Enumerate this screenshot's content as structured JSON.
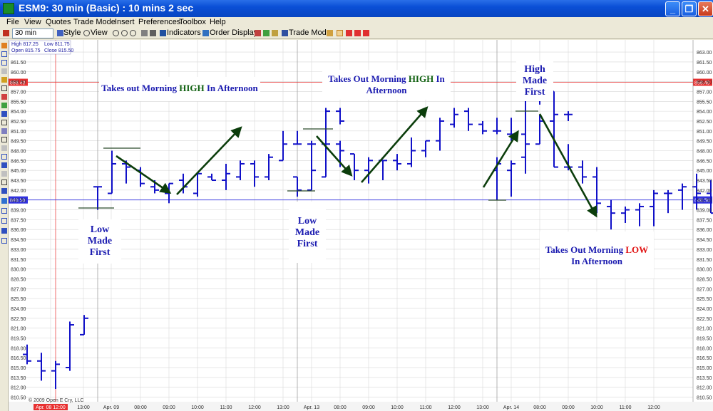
{
  "window": {
    "title": "ESM9: 30 min (Basic) : 10 mins 2 sec",
    "minimize": "_",
    "maximize": "❐",
    "close": "✕"
  },
  "menu": [
    "File",
    "View",
    "Quotes",
    "Trade Mode",
    "Insert",
    "Preferences",
    "Toolbox",
    "Help"
  ],
  "toolbar": {
    "interval": "30 min",
    "style_label": "Style",
    "view_label": "View",
    "indicators_label": "Indicators",
    "order_display_label": "Order Display",
    "trade_mode_label": "Trade Mode"
  },
  "quote_box": {
    "high": "High 817.25",
    "low": "Low 811.75",
    "open": "Open 815.75",
    "close": "Close 815.50"
  },
  "copyright": "© 2009 Open E Cry, LLC",
  "price_markers": {
    "red_level": "858.40",
    "blue_level": "840.50"
  },
  "notes": {
    "n1": {
      "a": "Takes out Morning ",
      "b": "HIGH",
      "c": " In Afternoon"
    },
    "n2": {
      "l1": "Low",
      "l2": "Made",
      "l3": "First"
    },
    "n3": {
      "l1a": "Takes Out Morning ",
      "l1b": "HIGH",
      "l1c": " In",
      "l2": "Afternoon"
    },
    "n4": {
      "l1": "Low",
      "l2": "Made",
      "l3": "First"
    },
    "n5": {
      "l1": "High",
      "l2": "Made",
      "l3": "First"
    },
    "n6": {
      "l1a": "Takes Out Morning ",
      "l1b": "LOW",
      "l2": "In Afternoon"
    }
  },
  "colors": {
    "bars": "#1010c8",
    "arrows": "#0b3d0b",
    "red_line": "#e83030",
    "blue_line": "#3030e0",
    "grid": "#d8d8d8"
  },
  "chart_data": {
    "type": "bar",
    "style": "ohlc",
    "y_ticks": [
      "810.50",
      "812.00",
      "813.50",
      "815.00",
      "816.50",
      "818.00",
      "819.50",
      "821.00",
      "822.50",
      "824.00",
      "825.50",
      "827.00",
      "828.50",
      "830.00",
      "831.50",
      "833.00",
      "834.50",
      "836.00",
      "837.50",
      "839.00",
      "840.50",
      "842.00",
      "843.50",
      "845.00",
      "846.50",
      "848.00",
      "849.50",
      "851.00",
      "852.50",
      "854.00",
      "855.50",
      "857.00",
      "858.50",
      "860.00",
      "861.50",
      "863.00"
    ],
    "right_ticks": [
      "810.50",
      "812.00",
      "813.50",
      "815.00",
      "816.50",
      "818.00",
      "819.50",
      "821.00",
      "822.50",
      "824.00",
      "825.50",
      "827.00",
      "828.50",
      "830.00",
      "831.50",
      "833.00",
      "834.50",
      "836.00",
      "837.50",
      "839.00",
      "840.50",
      "842.00",
      "843.50",
      "845.00",
      "846.50",
      "848.00",
      "849.50",
      "851.00",
      "852.50",
      "854.00",
      "855.50",
      "857.00",
      "858.50",
      "860.00",
      "861.50",
      "863.00"
    ],
    "ylim": [
      809.8,
      864.2
    ],
    "x_labels": [
      "Apr. 08 12:00",
      "13:00",
      "Apr. 09",
      "08:00",
      "09:00",
      "10:00",
      "11:00",
      "12:00",
      "13:00",
      "Apr. 13",
      "08:00",
      "09:00",
      "10:00",
      "11:00",
      "12:00",
      "13:00",
      "Apr. 14",
      "08:00",
      "09:00",
      "10:00",
      "11:00",
      "12:00"
    ],
    "bars": [
      {
        "o": 817.0,
        "h": 818.5,
        "l": 815.5,
        "c": 816.0
      },
      {
        "o": 816.0,
        "h": 817.25,
        "l": 813.0,
        "c": 814.5
      },
      {
        "o": 814.5,
        "h": 816.0,
        "l": 811.75,
        "c": 815.5
      },
      {
        "o": 815.0,
        "h": 822.0,
        "l": 814.5,
        "c": 821.5
      },
      {
        "o": 820.0,
        "h": 823.0,
        "l": 820.0,
        "c": 822.5
      },
      {
        "o": 842.5,
        "h": 842.5,
        "l": 839.0,
        "c": 842.5
      },
      {
        "o": 841.5,
        "h": 848.0,
        "l": 841.5,
        "c": 846.0
      },
      {
        "o": 846.0,
        "h": 846.5,
        "l": 843.0,
        "c": 845.5
      },
      {
        "o": 845.0,
        "h": 845.5,
        "l": 842.5,
        "c": 843.0
      },
      {
        "o": 842.5,
        "h": 843.5,
        "l": 841.5,
        "c": 842.0
      },
      {
        "o": 841.5,
        "h": 843.0,
        "l": 840.0,
        "c": 843.0
      },
      {
        "o": 843.5,
        "h": 844.5,
        "l": 841.5,
        "c": 842.5
      },
      {
        "o": 841.5,
        "h": 844.5,
        "l": 841.0,
        "c": 844.5
      },
      {
        "o": 844.0,
        "h": 844.5,
        "l": 843.5,
        "c": 843.5
      },
      {
        "o": 843.5,
        "h": 846.0,
        "l": 842.0,
        "c": 844.5
      },
      {
        "o": 844.0,
        "h": 846.5,
        "l": 843.5,
        "c": 846.0
      },
      {
        "o": 846.0,
        "h": 846.5,
        "l": 842.5,
        "c": 844.0
      },
      {
        "o": 844.0,
        "h": 847.5,
        "l": 843.5,
        "c": 847.0
      },
      {
        "o": 846.5,
        "h": 851.0,
        "l": 846.5,
        "c": 849.0
      },
      {
        "o": 849.0,
        "h": 851.0,
        "l": 849.0,
        "c": 849.0
      },
      {
        "o": 849.0,
        "h": 849.5,
        "l": 846.5,
        "c": 849.0
      },
      {
        "o": 849.0,
        "h": 854.5,
        "l": 846.5,
        "c": 854.0
      },
      {
        "o": 854.0,
        "h": 854.5,
        "l": 852.0,
        "c": 852.5
      },
      {
        "o": 844.0,
        "h": 844.0,
        "l": 841.0,
        "c": 842.0
      },
      {
        "o": 842.0,
        "h": 848.0,
        "l": 842.0,
        "c": 845.0
      },
      {
        "o": 844.0,
        "h": 851.0,
        "l": 844.0,
        "c": 849.0
      },
      {
        "o": 849.0,
        "h": 849.5,
        "l": 845.5,
        "c": 848.0
      },
      {
        "o": 847.5,
        "h": 847.5,
        "l": 843.5,
        "c": 845.0
      },
      {
        "o": 845.0,
        "h": 847.0,
        "l": 843.0,
        "c": 846.5
      },
      {
        "o": 846.5,
        "h": 846.5,
        "l": 843.5,
        "c": 846.5
      },
      {
        "o": 846.5,
        "h": 847.5,
        "l": 845.0,
        "c": 846.0
      },
      {
        "o": 846.0,
        "h": 850.0,
        "l": 845.5,
        "c": 848.0
      },
      {
        "o": 848.0,
        "h": 849.5,
        "l": 847.0,
        "c": 849.5
      },
      {
        "o": 849.5,
        "h": 853.0,
        "l": 848.0,
        "c": 852.5
      },
      {
        "o": 852.0,
        "h": 854.5,
        "l": 851.5,
        "c": 853.5
      },
      {
        "o": 854.0,
        "h": 854.5,
        "l": 851.0,
        "c": 852.0
      },
      {
        "o": 852.0,
        "h": 852.5,
        "l": 850.5,
        "c": 851.0
      },
      {
        "o": 851.0,
        "h": 853.0,
        "l": 850.5,
        "c": 851.0
      },
      {
        "o": 850.5,
        "h": 853.0,
        "l": 849.5,
        "c": 850.5
      },
      {
        "o": 850.5,
        "h": 859.0,
        "l": 850.5,
        "c": 858.0
      },
      {
        "o": 858.0,
        "h": 861.5,
        "l": 855.0,
        "c": 857.5
      },
      {
        "o": 857.0,
        "h": 857.0,
        "l": 853.0,
        "c": 853.5
      },
      {
        "o": 853.5,
        "h": 854.0,
        "l": 852.5,
        "c": 853.5
      },
      {
        "o": 845.0,
        "h": 847.0,
        "l": 840.5,
        "c": 846.0
      },
      {
        "o": 845.0,
        "h": 846.5,
        "l": 841.0,
        "c": 846.0
      },
      {
        "o": 847.0,
        "h": 851.0,
        "l": 844.5,
        "c": 849.0
      },
      {
        "o": 849.0,
        "h": 853.5,
        "l": 849.0,
        "c": 852.5
      },
      {
        "o": 852.5,
        "h": 853.5,
        "l": 845.5,
        "c": 845.5
      },
      {
        "o": 845.5,
        "h": 849.0,
        "l": 845.0,
        "c": 845.5
      },
      {
        "o": 845.5,
        "h": 846.5,
        "l": 843.0,
        "c": 844.0
      },
      {
        "o": 844.0,
        "h": 845.5,
        "l": 838.5,
        "c": 840.0
      },
      {
        "o": 839.5,
        "h": 840.5,
        "l": 836.0,
        "c": 838.5
      },
      {
        "o": 838.5,
        "h": 839.5,
        "l": 837.0,
        "c": 839.0
      },
      {
        "o": 839.0,
        "h": 840.0,
        "l": 836.5,
        "c": 839.5
      },
      {
        "o": 839.5,
        "h": 842.0,
        "l": 836.5,
        "c": 841.5
      },
      {
        "o": 841.5,
        "h": 842.0,
        "l": 838.5,
        "c": 841.5
      },
      {
        "o": 842.0,
        "h": 843.0,
        "l": 839.0,
        "c": 842.5
      },
      {
        "o": 842.5,
        "h": 844.5,
        "l": 839.0,
        "c": 841.5
      },
      {
        "o": 841.5,
        "h": 843.5,
        "l": 838.5,
        "c": 838.5
      },
      {
        "o": 838.5,
        "h": 840.5,
        "l": 837.0,
        "c": 838.5
      },
      {
        "o": 839.5,
        "h": 840.5,
        "l": 838.0,
        "c": 840.5
      }
    ]
  }
}
